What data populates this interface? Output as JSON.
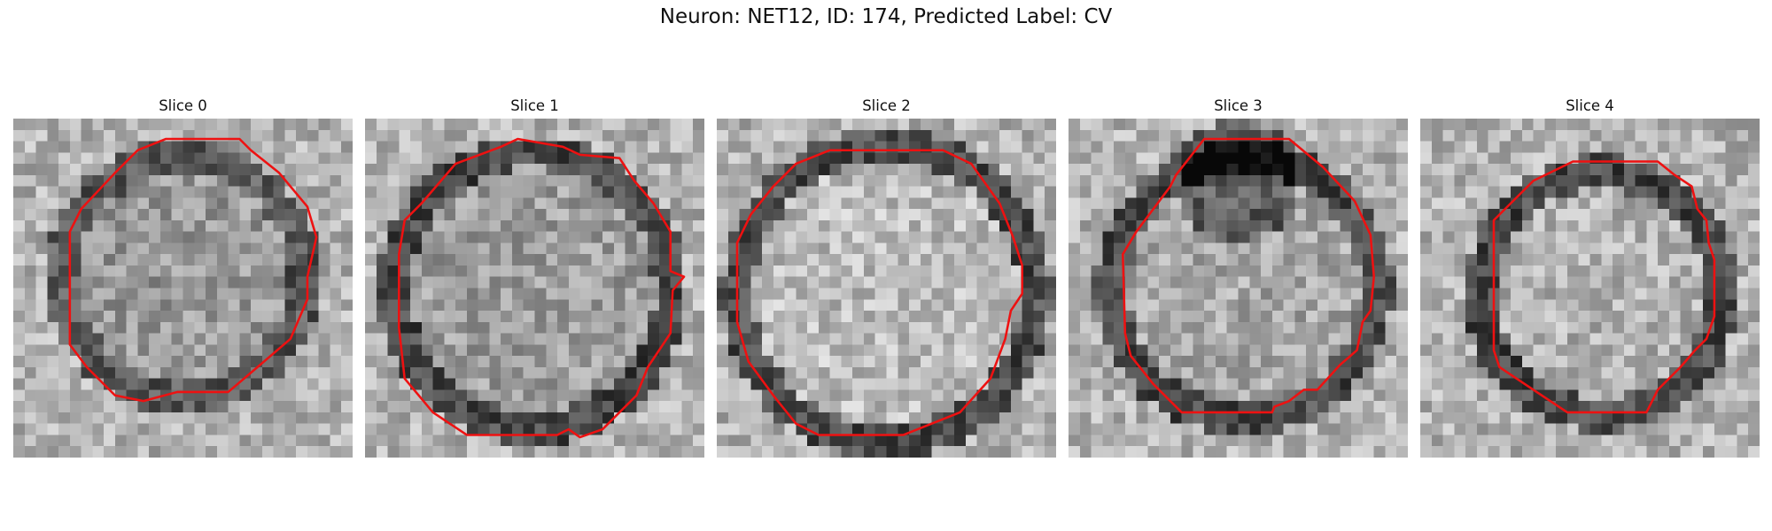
{
  "figure": {
    "title": "Neuron: NET12, ID: 174, Predicted Label: CV",
    "contour_color": "#ee1111",
    "colormap": "gray"
  },
  "slices": [
    {
      "label": "Slice 0"
    },
    {
      "label": "Slice 1"
    },
    {
      "label": "Slice 2"
    },
    {
      "label": "Slice 3"
    },
    {
      "label": "Slice 4"
    }
  ]
}
